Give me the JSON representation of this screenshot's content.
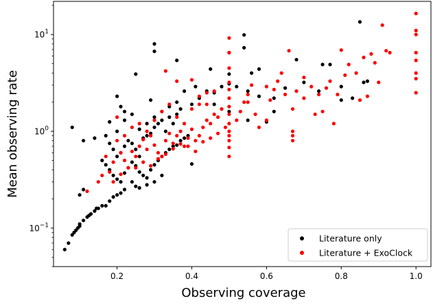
{
  "chart_data": {
    "type": "scatter",
    "title": "",
    "xlabel": "Observing coverage",
    "ylabel": "Mean observing rate",
    "xlim": [
      0.03,
      1.04
    ],
    "ylim": [
      0.04,
      22
    ],
    "yscale": "log",
    "grid": false,
    "legend_placement": "lower-right",
    "x_ticks": [
      {
        "value": 0.2,
        "label": "0.2"
      },
      {
        "value": 0.4,
        "label": "0.4"
      },
      {
        "value": 0.6,
        "label": "0.6"
      },
      {
        "value": 0.8,
        "label": "0.8"
      },
      {
        "value": 1.0,
        "label": "1.0"
      }
    ],
    "y_ticks": [
      {
        "value": 0.1,
        "base": "10",
        "exp": "−1"
      },
      {
        "value": 1,
        "base": "10",
        "exp": "0"
      },
      {
        "value": 10,
        "base": "10",
        "exp": "1"
      }
    ],
    "series": [
      {
        "name": "Literature only",
        "color": "#000000",
        "points": [
          [
            0.06,
            0.06
          ],
          [
            0.07,
            0.07
          ],
          [
            0.08,
            0.085
          ],
          [
            0.085,
            0.09
          ],
          [
            0.09,
            0.095
          ],
          [
            0.095,
            0.1
          ],
          [
            0.1,
            0.105
          ],
          [
            0.1,
            0.11
          ],
          [
            0.11,
            0.12
          ],
          [
            0.12,
            0.13
          ],
          [
            0.125,
            0.135
          ],
          [
            0.13,
            0.14
          ],
          [
            0.14,
            0.15
          ],
          [
            0.145,
            0.16
          ],
          [
            0.15,
            0.16
          ],
          [
            0.16,
            0.17
          ],
          [
            0.17,
            0.17
          ],
          [
            0.18,
            0.19
          ],
          [
            0.19,
            0.21
          ],
          [
            0.2,
            0.22
          ],
          [
            0.21,
            0.23
          ],
          [
            0.22,
            0.25
          ],
          [
            0.1,
            0.22
          ],
          [
            0.11,
            0.25
          ],
          [
            0.08,
            1.1
          ],
          [
            0.11,
            0.8
          ],
          [
            0.14,
            0.85
          ],
          [
            0.18,
            1.25
          ],
          [
            0.2,
            2.3
          ],
          [
            0.21,
            1.8
          ],
          [
            0.22,
            1.6
          ],
          [
            0.25,
            3.9
          ],
          [
            0.3,
            8.0
          ],
          [
            0.3,
            6.7
          ],
          [
            0.29,
            2.1
          ],
          [
            0.36,
            5.4
          ],
          [
            0.45,
            4.4
          ],
          [
            0.5,
            6.5
          ],
          [
            0.54,
            9.9
          ],
          [
            0.54,
            7.3
          ],
          [
            0.56,
            4.0
          ],
          [
            0.58,
            4.4
          ],
          [
            0.68,
            5.5
          ],
          [
            0.75,
            4.9
          ],
          [
            0.77,
            4.9
          ],
          [
            0.8,
            2.9
          ],
          [
            0.85,
            13.5
          ],
          [
            0.86,
            3.2
          ],
          [
            0.17,
            0.9
          ],
          [
            0.18,
            0.75
          ],
          [
            0.19,
            0.65
          ],
          [
            0.2,
            0.55
          ],
          [
            0.21,
            0.6
          ],
          [
            0.22,
            0.7
          ],
          [
            0.23,
            0.8
          ],
          [
            0.24,
            0.75
          ],
          [
            0.25,
            0.65
          ],
          [
            0.26,
            0.55
          ],
          [
            0.27,
            0.85
          ],
          [
            0.28,
            0.9
          ],
          [
            0.29,
            0.95
          ],
          [
            0.3,
            1.1
          ],
          [
            0.31,
            1.2
          ],
          [
            0.32,
            1.3
          ],
          [
            0.33,
            1.0
          ],
          [
            0.34,
            1.4
          ],
          [
            0.35,
            1.2
          ],
          [
            0.36,
            1.5
          ],
          [
            0.37,
            1.7
          ],
          [
            0.38,
            2.6
          ],
          [
            0.4,
            1.9
          ],
          [
            0.42,
            2.2
          ],
          [
            0.44,
            2.6
          ],
          [
            0.46,
            2.5
          ],
          [
            0.48,
            2.9
          ],
          [
            0.5,
            3.1
          ],
          [
            0.5,
            3.9
          ],
          [
            0.52,
            2.9
          ],
          [
            0.55,
            2.6
          ],
          [
            0.58,
            2.3
          ],
          [
            0.62,
            2.2
          ],
          [
            0.65,
            2.8
          ],
          [
            0.7,
            3.2
          ],
          [
            0.74,
            2.6
          ],
          [
            0.8,
            2.1
          ],
          [
            0.83,
            2.2
          ],
          [
            0.87,
            3.3
          ],
          [
            0.16,
            0.5
          ],
          [
            0.17,
            0.45
          ],
          [
            0.18,
            0.4
          ],
          [
            0.19,
            0.35
          ],
          [
            0.2,
            0.32
          ],
          [
            0.21,
            0.3
          ],
          [
            0.22,
            0.37
          ],
          [
            0.23,
            0.42
          ],
          [
            0.24,
            0.48
          ],
          [
            0.25,
            0.44
          ],
          [
            0.26,
            0.38
          ],
          [
            0.27,
            0.35
          ],
          [
            0.28,
            0.33
          ],
          [
            0.29,
            0.4
          ],
          [
            0.3,
            0.45
          ],
          [
            0.31,
            0.5
          ],
          [
            0.32,
            0.55
          ],
          [
            0.33,
            0.6
          ],
          [
            0.34,
            0.65
          ],
          [
            0.35,
            0.7
          ],
          [
            0.36,
            0.72
          ],
          [
            0.37,
            0.8
          ],
          [
            0.38,
            0.85
          ],
          [
            0.39,
            0.9
          ],
          [
            0.4,
            0.46
          ],
          [
            0.24,
            0.3
          ],
          [
            0.25,
            0.27
          ],
          [
            0.26,
            0.26
          ],
          [
            0.28,
            0.28
          ],
          [
            0.3,
            0.3
          ],
          [
            0.32,
            0.35
          ],
          [
            0.2,
            1.0
          ],
          [
            0.22,
            1.3
          ],
          [
            0.24,
            1.5
          ],
          [
            0.26,
            1.05
          ],
          [
            0.28,
            1.2
          ],
          [
            0.3,
            1.4
          ],
          [
            0.32,
            1.6
          ],
          [
            0.34,
            1.8
          ],
          [
            0.36,
            2.0
          ],
          [
            0.41,
            2.9
          ],
          [
            0.46,
            1.9
          ],
          [
            0.5,
            1.6
          ],
          [
            0.55,
            1.3
          ],
          [
            0.6,
            1.25
          ],
          [
            0.62,
            1.6
          ]
        ]
      },
      {
        "name": "Literature + ExoClock",
        "color": "#ff0000",
        "points": [
          [
            0.12,
            0.24
          ],
          [
            0.15,
            0.3
          ],
          [
            0.16,
            0.35
          ],
          [
            0.17,
            0.55
          ],
          [
            0.18,
            0.38
          ],
          [
            0.19,
            0.48
          ],
          [
            0.2,
            0.8
          ],
          [
            0.21,
            0.6
          ],
          [
            0.22,
            0.5
          ],
          [
            0.23,
            0.42
          ],
          [
            0.24,
            0.62
          ],
          [
            0.25,
            0.55
          ],
          [
            0.26,
            0.7
          ],
          [
            0.27,
            0.82
          ],
          [
            0.28,
            0.65
          ],
          [
            0.29,
            0.9
          ],
          [
            0.3,
            0.72
          ],
          [
            0.31,
            0.6
          ],
          [
            0.32,
            0.55
          ],
          [
            0.33,
            0.8
          ],
          [
            0.34,
            0.95
          ],
          [
            0.35,
            0.75
          ],
          [
            0.36,
            0.9
          ],
          [
            0.37,
            1.0
          ],
          [
            0.38,
            0.7
          ],
          [
            0.39,
            0.85
          ],
          [
            0.4,
            1.05
          ],
          [
            0.41,
            0.8
          ],
          [
            0.42,
            0.9
          ],
          [
            0.43,
            1.1
          ],
          [
            0.44,
            1.3
          ],
          [
            0.45,
            1.2
          ],
          [
            0.46,
            1.5
          ],
          [
            0.47,
            1.4
          ],
          [
            0.48,
            1.7
          ],
          [
            0.5,
            0.55
          ],
          [
            0.5,
            0.68
          ],
          [
            0.5,
            0.8
          ],
          [
            0.5,
            0.9
          ],
          [
            0.5,
            1.0
          ],
          [
            0.5,
            1.2
          ],
          [
            0.5,
            1.5
          ],
          [
            0.5,
            1.8
          ],
          [
            0.5,
            2.2
          ],
          [
            0.5,
            2.7
          ],
          [
            0.5,
            3.2
          ],
          [
            0.5,
            4.5
          ],
          [
            0.5,
            6.5
          ],
          [
            0.5,
            9.2
          ],
          [
            0.52,
            1.3
          ],
          [
            0.53,
            1.6
          ],
          [
            0.54,
            2.0
          ],
          [
            0.55,
            2.4
          ],
          [
            0.56,
            3.0
          ],
          [
            0.57,
            1.5
          ],
          [
            0.58,
            1.1
          ],
          [
            0.6,
            1.3
          ],
          [
            0.61,
            2.1
          ],
          [
            0.62,
            2.7
          ],
          [
            0.63,
            3.3
          ],
          [
            0.64,
            4.0
          ],
          [
            0.65,
            2.4
          ],
          [
            0.66,
            6.8
          ],
          [
            0.67,
            1.7
          ],
          [
            0.67,
            0.9
          ],
          [
            0.67,
            0.8
          ],
          [
            0.67,
            1.0
          ],
          [
            0.68,
            2.6
          ],
          [
            0.7,
            2.2
          ],
          [
            0.72,
            2.9
          ],
          [
            0.73,
            1.5
          ],
          [
            0.74,
            2.4
          ],
          [
            0.75,
            1.6
          ],
          [
            0.76,
            2.8
          ],
          [
            0.77,
            3.3
          ],
          [
            0.78,
            1.2
          ],
          [
            0.79,
            2.4
          ],
          [
            0.8,
            6.9
          ],
          [
            0.81,
            3.8
          ],
          [
            0.82,
            4.9
          ],
          [
            0.84,
            4.0
          ],
          [
            0.85,
            2.1
          ],
          [
            0.86,
            5.8
          ],
          [
            0.87,
            2.3
          ],
          [
            0.88,
            6.3
          ],
          [
            0.89,
            5.1
          ],
          [
            0.9,
            3.2
          ],
          [
            0.91,
            12.5
          ],
          [
            0.92,
            6.8
          ],
          [
            0.93,
            6.5
          ],
          [
            1.0,
            16.5
          ],
          [
            1.0,
            11.0
          ],
          [
            1.0,
            10.0
          ],
          [
            1.0,
            6.5
          ],
          [
            1.0,
            5.4
          ],
          [
            1.0,
            4.0
          ],
          [
            1.0,
            3.5
          ],
          [
            1.0,
            2.5
          ],
          [
            0.33,
            4.2
          ],
          [
            0.36,
            3.3
          ],
          [
            0.4,
            3.4
          ],
          [
            0.42,
            2.3
          ],
          [
            0.44,
            1.9
          ],
          [
            0.46,
            2.6
          ],
          [
            0.2,
            1.4
          ],
          [
            0.22,
            0.9
          ],
          [
            0.24,
            1.1
          ],
          [
            0.26,
            1.2
          ],
          [
            0.28,
            1.0
          ],
          [
            0.3,
            1.3
          ],
          [
            0.32,
            1.6
          ],
          [
            0.34,
            1.9
          ],
          [
            0.36,
            1.4
          ],
          [
            0.38,
            1.2
          ],
          [
            0.4,
            1.7
          ],
          [
            0.42,
            1.9
          ],
          [
            0.44,
            2.5
          ],
          [
            0.19,
            0.3
          ],
          [
            0.21,
            0.36
          ],
          [
            0.25,
            0.42
          ],
          [
            0.27,
            0.48
          ],
          [
            0.29,
            0.44
          ],
          [
            0.31,
            0.52
          ],
          [
            0.33,
            0.58
          ],
          [
            0.35,
            0.66
          ],
          [
            0.37,
            0.74
          ],
          [
            0.39,
            0.7
          ],
          [
            0.41,
            0.62
          ],
          [
            0.43,
            0.78
          ],
          [
            0.45,
            0.85
          ],
          [
            0.47,
            0.95
          ],
          [
            0.49,
            1.1
          ],
          [
            0.7,
            3.6
          ],
          [
            0.6,
            2.9
          ],
          [
            0.55,
            2.0
          ]
        ]
      }
    ]
  }
}
